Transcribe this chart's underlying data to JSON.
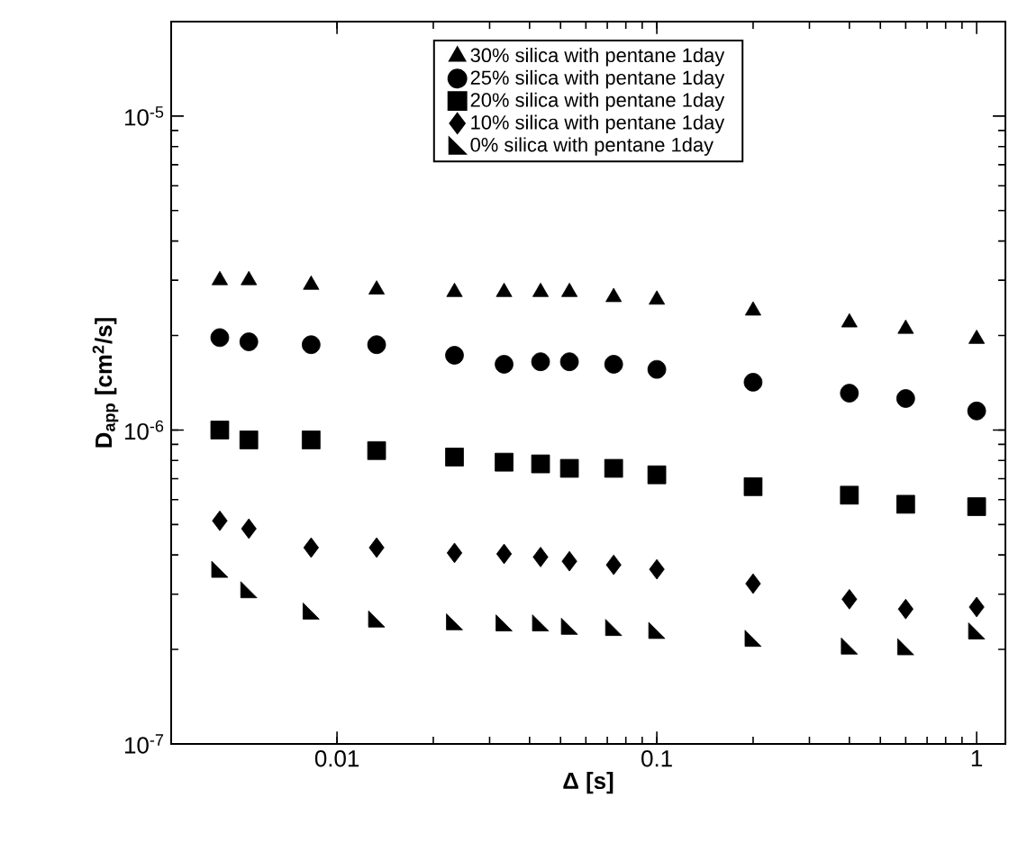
{
  "chart_data": {
    "type": "scatter",
    "xlabel": "Δ [s]",
    "ylabel": "D$_{app}$ [cm$^{2}$/s]",
    "log": "xy",
    "x": [
      0.0043,
      0.0053,
      0.0083,
      0.0133,
      0.0233,
      0.0333,
      0.0433,
      0.0533,
      0.0733,
      0.1,
      0.2,
      0.4,
      0.6,
      1.0
    ],
    "xlim": [
      0.00303,
      1.23
    ],
    "ylim": [
      1e-07,
      2e-05
    ],
    "xticks": [
      0.01,
      0.1,
      1
    ],
    "yticks": [
      {
        "value": 1e-07,
        "label": "10$^{-7}$"
      },
      {
        "value": 1e-06,
        "label": "10$^{-6}$"
      },
      {
        "value": 1e-05,
        "label": "10$^{-5}$"
      }
    ],
    "legend": "top",
    "series": [
      {
        "name": "30% silica with pentane 1day",
        "color": "#000000",
        "marker": "triangle",
        "values": [
          3e-06,
          3e-06,
          2.9e-06,
          2.8e-06,
          2.75e-06,
          2.75e-06,
          2.75e-06,
          2.75e-06,
          2.65e-06,
          2.6e-06,
          2.4e-06,
          2.2e-06,
          2.1e-06,
          1.95e-06
        ]
      },
      {
        "name": "25% silica with pentane 1day",
        "color": "#000000",
        "marker": "circle",
        "values": [
          1.97e-06,
          1.91e-06,
          1.87e-06,
          1.87e-06,
          1.73e-06,
          1.62e-06,
          1.65e-06,
          1.65e-06,
          1.62e-06,
          1.56e-06,
          1.42e-06,
          1.31e-06,
          1.26e-06,
          1.15e-06
        ]
      },
      {
        "name": "20% silica with pentane 1day",
        "color": "#000000",
        "marker": "square",
        "values": [
          1e-06,
          9.3e-07,
          9.3e-07,
          8.6e-07,
          8.2e-07,
          7.9e-07,
          7.8e-07,
          7.55e-07,
          7.55e-07,
          7.2e-07,
          6.6e-07,
          6.2e-07,
          5.8e-07,
          5.7e-07
        ]
      },
      {
        "name": "10% silica with pentane 1day",
        "color": "#000000",
        "marker": "diamond",
        "values": [
          5.14e-07,
          4.85e-07,
          4.22e-07,
          4.22e-07,
          4.06e-07,
          4.03e-07,
          3.94e-07,
          3.82e-07,
          3.72e-07,
          3.6e-07,
          3.24e-07,
          2.89e-07,
          2.69e-07,
          2.73e-07
        ]
      },
      {
        "name": "0% silica with pentane 1day",
        "color": "#000000",
        "values": [
          3.6e-07,
          3.1e-07,
          2.65e-07,
          2.5e-07,
          2.45e-07,
          2.43e-07,
          2.43e-07,
          2.37e-07,
          2.35e-07,
          2.3e-07,
          2.17e-07,
          2.05e-07,
          2.04e-07,
          2.29e-07
        ]
      }
    ]
  }
}
